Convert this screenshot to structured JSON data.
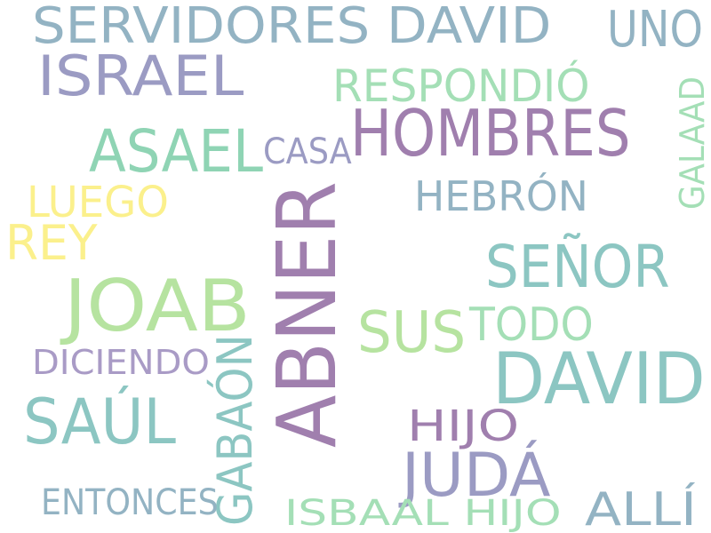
{
  "words": {
    "servidores_david": {
      "text": "SERVIDORES DAVID",
      "color": "#93b3c3"
    },
    "uno": {
      "text": "UNO",
      "color": "#93b3c3"
    },
    "israel": {
      "text": "ISRAEL",
      "color": "#9b9bc3"
    },
    "respondio": {
      "text": "RESPONDIÓ",
      "color": "#a4dfb6"
    },
    "hombres": {
      "text": "HOMBRES",
      "color": "#a07fae"
    },
    "galaad": {
      "text": "GALAAD",
      "color": "#a4dfb6"
    },
    "asael": {
      "text": "ASAEL",
      "color": "#8fd4b4"
    },
    "casa": {
      "text": "CASA",
      "color": "#9b9bc3"
    },
    "luego": {
      "text": "LUEGO",
      "color": "#fbf08c"
    },
    "hebron": {
      "text": "HEBRÓN",
      "color": "#93b3c3"
    },
    "abner": {
      "text": "ABNER",
      "color": "#a07fae"
    },
    "rey": {
      "text": "REY",
      "color": "#fbf08c"
    },
    "senor": {
      "text": "SEÑOR",
      "color": "#8cc6c2"
    },
    "joab": {
      "text": "JOAB",
      "color": "#b6e3a0"
    },
    "sus": {
      "text": "SUS",
      "color": "#b6e3a0"
    },
    "todo": {
      "text": "TODO",
      "color": "#a4dfb6"
    },
    "david": {
      "text": "DAVID",
      "color": "#8cc6c2"
    },
    "diciendo": {
      "text": "DICIENDO",
      "color": "#a99bc6"
    },
    "gabaon": {
      "text": "GABAÓN",
      "color": "#8cc6c2"
    },
    "saul": {
      "text": "SAÚL",
      "color": "#8cc6c2"
    },
    "hijo": {
      "text": "HIJO",
      "color": "#a07fae"
    },
    "juda": {
      "text": "JUDÁ",
      "color": "#9b9bc3"
    },
    "entonces": {
      "text": "ENTONCES",
      "color": "#93b3c3"
    },
    "isbaal_hijo": {
      "text": "ISBAAL HIJO",
      "color": "#a4dfb6"
    },
    "alli": {
      "text": "ALLÍ",
      "color": "#93b3c3"
    }
  }
}
